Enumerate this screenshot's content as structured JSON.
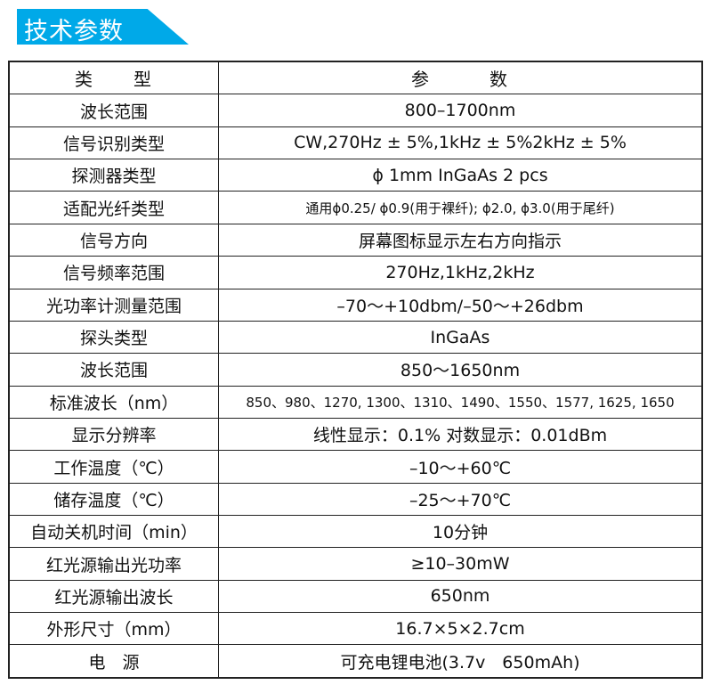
{
  "title": "技术参数",
  "accent_color": "#00a9e8",
  "header": {
    "col1": "类　　型",
    "col2": "参　　　数"
  },
  "rows": [
    {
      "k": "波长范围",
      "v": "800–1700nm"
    },
    {
      "k": "信号识别类型",
      "v": "CW,270Hz ± 5%,1kHz ± 5%2kHz ± 5%"
    },
    {
      "k": "探测器类型",
      "v": "ϕ 1mm InGaAs 2 pcs"
    },
    {
      "k": "适配光纤类型",
      "v": "通用ϕ0.25/ ϕ0.9(用于裸纤); ϕ2.0, ϕ3.0(用于尾纤)"
    },
    {
      "k": "信号方向",
      "v": "屏幕图标显示左右方向指示"
    },
    {
      "k": "信号频率范围",
      "v": "270Hz,1kHz,2kHz"
    },
    {
      "k": "光功率计测量范围",
      "v": "–70～+10dbm/–50～+26dbm"
    },
    {
      "k": "探头类型",
      "v": "InGaAs"
    },
    {
      "k": "波长范围",
      "v": "850～1650nm"
    },
    {
      "k": "标准波长（nm）",
      "v": "850、980、1270, 1300、1310、1490、1550、1577, 1625, 1650"
    },
    {
      "k": "显示分辨率",
      "v": "线性显示：0.1%  对数显示：0.01dBm"
    },
    {
      "k": "工作温度（℃）",
      "v": "–10～+60℃"
    },
    {
      "k": "储存温度（℃）",
      "v": "–25～+70℃"
    },
    {
      "k": "自动关机时间（min）",
      "v": "10分钟"
    },
    {
      "k": "红光源输出光功率",
      "v": "≥10–30mW"
    },
    {
      "k": "红光源输出波长",
      "v": "650nm"
    },
    {
      "k": "外形尺寸（mm）",
      "v": "16.7×5×2.7cm"
    },
    {
      "k": "电　源",
      "v": "可充电锂电池(3.7v　650mAh)"
    }
  ]
}
